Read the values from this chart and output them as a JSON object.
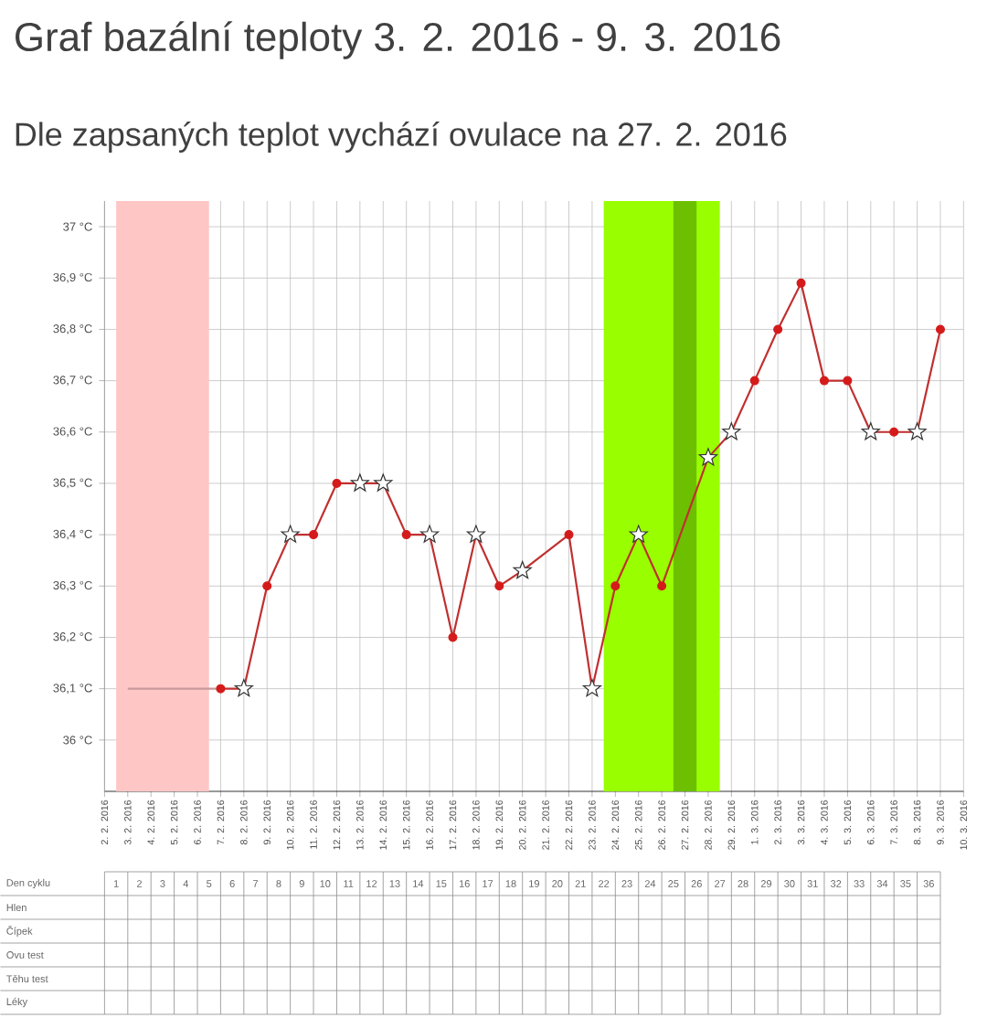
{
  "chart_data": {
    "type": "line",
    "title": "Graf bazální teploty 3. 2. 2016 - 9. 3. 2016",
    "subtitle": "Dle zapsaných teplot vychází ovulace na 27. 2. 2016",
    "categories": [
      "2. 2. 2016",
      "3. 2. 2016",
      "4. 2. 2016",
      "5. 2. 2016",
      "6. 2. 2016",
      "7. 2. 2016",
      "8. 2. 2016",
      "9. 2. 2016",
      "10. 2. 2016",
      "11. 2. 2016",
      "12. 2. 2016",
      "13. 2. 2016",
      "14. 2. 2016",
      "15. 2. 2016",
      "16. 2. 2016",
      "17. 2. 2016",
      "18. 2. 2016",
      "19. 2. 2016",
      "20. 2. 2016",
      "21. 2. 2016",
      "22. 2. 2016",
      "23. 2. 2016",
      "24. 2. 2016",
      "25. 2. 2016",
      "26. 2. 2016",
      "27. 2. 2016",
      "28. 2. 2016",
      "29. 2. 2016",
      "1. 3. 2016",
      "2. 3. 2016",
      "3. 3. 2016",
      "4. 3. 2016",
      "5. 3. 2016",
      "6. 3. 2016",
      "7. 3. 2016",
      "8. 3. 2016",
      "9. 3. 2016",
      "10. 3. 2016"
    ],
    "series": [
      {
        "type": "line",
        "marker": "none",
        "color": "#c89a9a",
        "values": [
          null,
          36.1,
          36.1,
          36.1,
          36.1,
          36.1,
          null,
          null,
          null,
          null,
          null,
          null,
          null,
          null,
          null,
          null,
          null,
          null,
          null,
          null,
          null,
          null,
          null,
          null,
          null,
          null,
          null,
          null,
          null,
          null,
          null,
          null,
          null,
          null,
          null,
          null,
          null,
          null
        ]
      },
      {
        "type": "line",
        "marker": "none",
        "color": "#c03030",
        "values": [
          null,
          null,
          null,
          null,
          null,
          36.1,
          36.1,
          36.3,
          36.4,
          36.4,
          36.5,
          36.5,
          36.5,
          36.4,
          36.4,
          36.2,
          36.4,
          36.3,
          36.33,
          null,
          36.4,
          36.1,
          36.3,
          36.4,
          36.3,
          null,
          36.55,
          36.6,
          36.7,
          36.8,
          36.89,
          36.7,
          36.7,
          36.6,
          36.6,
          36.6,
          36.8,
          null
        ]
      },
      {
        "type": "scatter",
        "marker": "circle",
        "color": "#d41a1a",
        "values": [
          null,
          null,
          null,
          null,
          null,
          36.1,
          null,
          36.3,
          null,
          36.4,
          36.5,
          null,
          null,
          36.4,
          null,
          36.2,
          null,
          36.3,
          null,
          null,
          36.4,
          null,
          36.3,
          null,
          36.3,
          null,
          null,
          null,
          36.7,
          36.8,
          36.89,
          36.7,
          36.7,
          null,
          36.6,
          null,
          36.8,
          null
        ]
      },
      {
        "type": "scatter",
        "marker": "star",
        "color": "#ffffff",
        "values": [
          null,
          null,
          null,
          null,
          null,
          null,
          36.1,
          null,
          36.4,
          null,
          null,
          36.5,
          36.5,
          null,
          36.4,
          null,
          36.4,
          null,
          36.33,
          null,
          null,
          36.1,
          null,
          36.4,
          null,
          null,
          36.55,
          36.6,
          null,
          null,
          null,
          null,
          null,
          36.6,
          null,
          36.6,
          null,
          null
        ]
      }
    ],
    "ylim": [
      35.9,
      37.05
    ],
    "yticks": [
      {
        "value": 36,
        "label": "36 °C"
      },
      {
        "value": 36.1,
        "label": "36,1 °C"
      },
      {
        "value": 36.2,
        "label": "36,2 °C"
      },
      {
        "value": 36.3,
        "label": "36,3 °C"
      },
      {
        "value": 36.4,
        "label": "36,4 °C"
      },
      {
        "value": 36.5,
        "label": "36,5 °C"
      },
      {
        "value": 36.6,
        "label": "36,6 °C"
      },
      {
        "value": 36.7,
        "label": "36,7 °C"
      },
      {
        "value": 36.8,
        "label": "36,8 °C"
      },
      {
        "value": 36.9,
        "label": "36,9 °C"
      },
      {
        "value": 37,
        "label": "37 °C"
      }
    ],
    "grid": true,
    "bands": [
      {
        "axis": "x",
        "from": "3. 2. 2016",
        "to": "6. 2. 2016",
        "color": "#ffc6c6"
      },
      {
        "axis": "x",
        "from": "24. 2. 2016",
        "to": "28. 2. 2016",
        "color": "#99ff00"
      },
      {
        "axis": "x",
        "from": "27. 2. 2016",
        "to": "27. 2. 2016",
        "color": "#6cc000"
      }
    ],
    "x2label": "Den cyklu",
    "x2lim": [
      0.5,
      37.5
    ],
    "x2ticks": [
      1,
      2,
      3,
      4,
      5,
      6,
      7,
      8,
      9,
      10,
      11,
      12,
      13,
      14,
      15,
      16,
      17,
      18,
      19,
      20,
      21,
      22,
      23,
      24,
      25,
      26,
      27,
      28,
      29,
      30,
      31,
      32,
      33,
      34,
      35,
      36
    ],
    "annotations": [
      "Hlen",
      "Čípek",
      "Ovu test",
      "Těhu test",
      "Léky"
    ]
  }
}
